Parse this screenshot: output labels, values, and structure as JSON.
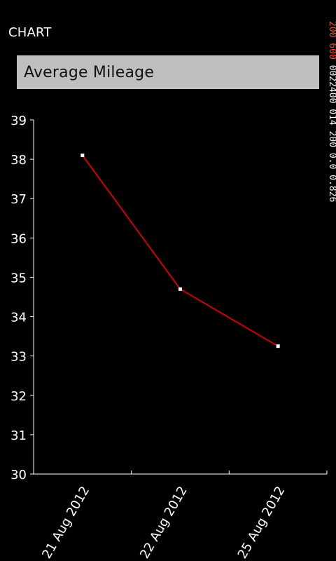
{
  "header": {
    "title": "CHART"
  },
  "picker": {
    "selected_label": "Average Mileage"
  },
  "overlay": {
    "accent_text": "200 600 ",
    "main_text": "0022400 014 200 0.0 0.826"
  },
  "colors": {
    "background": "#000000",
    "axis": "#ffffff",
    "series_line": "#d10000",
    "markers": "#ffffff",
    "picker_bg": "#bfbfbf",
    "overlay_accent": "#ff4a1a"
  },
  "chart_data": {
    "type": "line",
    "title": "",
    "xlabel": "",
    "ylabel": "",
    "categories": [
      "21 Aug 2012",
      "22 Aug 2012",
      "25 Aug 2012"
    ],
    "series": [
      {
        "values": [
          38.1,
          34.7,
          33.25
        ]
      }
    ],
    "ylim": [
      30,
      39
    ],
    "yticks": [
      30,
      31,
      32,
      33,
      34,
      35,
      36,
      37,
      38,
      39
    ],
    "grid": false,
    "legend": "none"
  }
}
